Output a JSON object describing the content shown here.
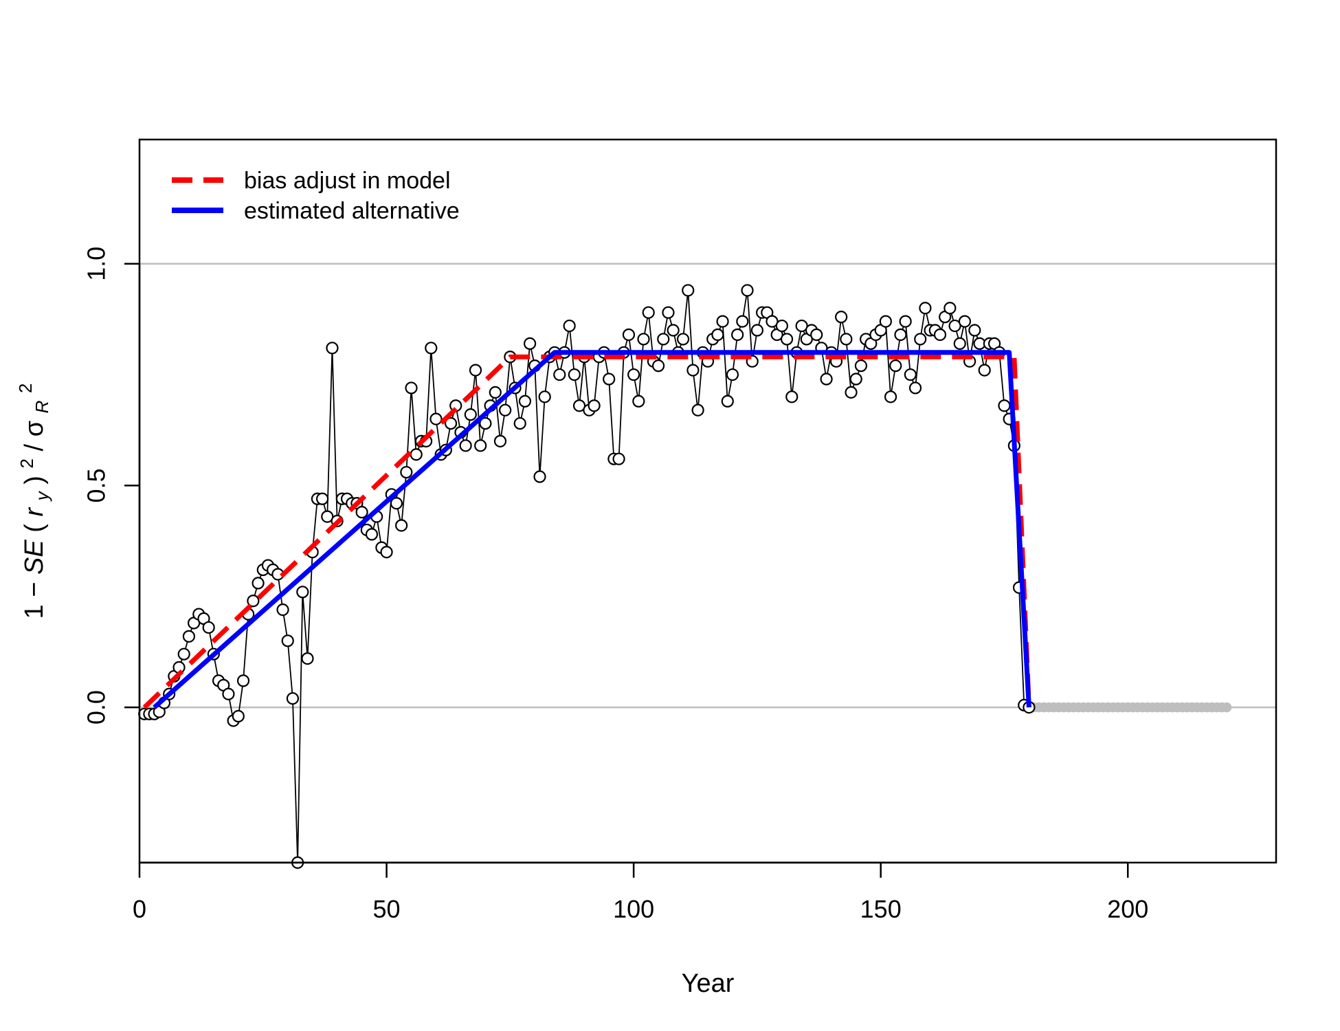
{
  "chart_data": {
    "type": "scatter",
    "xlabel": "Year",
    "ylabel": {
      "one": "1",
      "minus": "−",
      "se": "SE",
      "open": "(",
      "hat": "^",
      "r": "r",
      "sub_y": "y",
      "close": ")",
      "sq": "2",
      "slash": "/",
      "sigma": "σ",
      "sub_R": "R",
      "sq2": "2"
    },
    "xlim": [
      0,
      230
    ],
    "ylim": [
      -0.35,
      1.28
    ],
    "x_ticks": [
      0,
      50,
      100,
      150,
      200
    ],
    "y_ticks": [
      0.0,
      0.5,
      1.0
    ],
    "x_tick_labels": [
      "0",
      "50",
      "100",
      "150",
      "200"
    ],
    "y_tick_labels": [
      "0.0",
      "0.5",
      "1.0"
    ],
    "hlines": [
      0,
      1
    ],
    "legend": {
      "position": "top-left",
      "entries": [
        {
          "label": "bias adjust in model",
          "color": "#ff0000",
          "style": "dashed"
        },
        {
          "label": "estimated alternative",
          "color": "#0000ff",
          "style": "solid"
        }
      ]
    },
    "series": [
      {
        "name": "bias adjust in model",
        "color": "#ff0000",
        "style": "dashed",
        "x": [
          1,
          75,
          177,
          180
        ],
        "y": [
          0,
          0.79,
          0.79,
          0
        ]
      },
      {
        "name": "estimated alternative",
        "color": "#0000ff",
        "style": "solid",
        "x": [
          3,
          84,
          176,
          180
        ],
        "y": [
          0,
          0.8,
          0.8,
          0
        ]
      }
    ],
    "points": {
      "x": [
        1,
        2,
        3,
        4,
        5,
        6,
        7,
        8,
        9,
        10,
        11,
        12,
        13,
        14,
        15,
        16,
        17,
        18,
        19,
        20,
        21,
        22,
        23,
        24,
        25,
        26,
        27,
        28,
        29,
        30,
        31,
        32,
        33,
        34,
        35,
        36,
        37,
        38,
        39,
        40,
        41,
        42,
        43,
        44,
        45,
        46,
        47,
        48,
        49,
        50,
        51,
        52,
        53,
        54,
        55,
        56,
        57,
        58,
        59,
        60,
        61,
        62,
        63,
        64,
        65,
        66,
        67,
        68,
        69,
        70,
        71,
        72,
        73,
        74,
        75,
        76,
        77,
        78,
        79,
        80,
        81,
        82,
        83,
        84,
        85,
        86,
        87,
        88,
        89,
        90,
        91,
        92,
        93,
        94,
        95,
        96,
        97,
        98,
        99,
        100,
        101,
        102,
        103,
        104,
        105,
        106,
        107,
        108,
        109,
        110,
        111,
        112,
        113,
        114,
        115,
        116,
        117,
        118,
        119,
        120,
        121,
        122,
        123,
        124,
        125,
        126,
        127,
        128,
        129,
        130,
        131,
        132,
        133,
        134,
        135,
        136,
        137,
        138,
        139,
        140,
        141,
        142,
        143,
        144,
        145,
        146,
        147,
        148,
        149,
        150,
        151,
        152,
        153,
        154,
        155,
        156,
        157,
        158,
        159,
        160,
        161,
        162,
        163,
        164,
        165,
        166,
        167,
        168,
        169,
        170,
        171,
        172,
        173,
        174,
        175,
        176,
        177,
        178,
        179,
        180
      ],
      "y": [
        -0.015,
        -0.015,
        -0.015,
        -0.01,
        0.01,
        0.03,
        0.07,
        0.09,
        0.12,
        0.16,
        0.19,
        0.21,
        0.2,
        0.18,
        0.12,
        0.06,
        0.05,
        0.03,
        -0.03,
        -0.02,
        0.06,
        0.21,
        0.24,
        0.28,
        0.31,
        0.32,
        0.31,
        0.3,
        0.22,
        0.15,
        0.02,
        -0.35,
        0.26,
        0.11,
        0.35,
        0.47,
        0.47,
        0.43,
        0.81,
        0.42,
        0.47,
        0.47,
        0.46,
        0.46,
        0.44,
        0.4,
        0.39,
        0.43,
        0.36,
        0.35,
        0.48,
        0.46,
        0.41,
        0.53,
        0.72,
        0.57,
        0.6,
        0.6,
        0.81,
        0.65,
        0.57,
        0.58,
        0.64,
        0.68,
        0.62,
        0.59,
        0.66,
        0.76,
        0.59,
        0.64,
        0.68,
        0.71,
        0.6,
        0.67,
        0.79,
        0.72,
        0.64,
        0.69,
        0.82,
        0.77,
        0.52,
        0.7,
        0.79,
        0.8,
        0.75,
        0.8,
        0.86,
        0.75,
        0.68,
        0.79,
        0.67,
        0.68,
        0.79,
        0.8,
        0.74,
        0.56,
        0.56,
        0.8,
        0.84,
        0.75,
        0.69,
        0.83,
        0.89,
        0.78,
        0.77,
        0.83,
        0.89,
        0.85,
        0.8,
        0.83,
        0.94,
        0.76,
        0.67,
        0.8,
        0.78,
        0.83,
        0.84,
        0.87,
        0.69,
        0.75,
        0.84,
        0.87,
        0.94,
        0.78,
        0.85,
        0.89,
        0.89,
        0.87,
        0.84,
        0.86,
        0.83,
        0.7,
        0.8,
        0.86,
        0.83,
        0.85,
        0.84,
        0.81,
        0.74,
        0.8,
        0.78,
        0.88,
        0.83,
        0.71,
        0.74,
        0.77,
        0.83,
        0.82,
        0.84,
        0.85,
        0.87,
        0.7,
        0.77,
        0.84,
        0.87,
        0.75,
        0.72,
        0.83,
        0.9,
        0.85,
        0.85,
        0.84,
        0.88,
        0.9,
        0.86,
        0.82,
        0.87,
        0.78,
        0.85,
        0.82,
        0.76,
        0.82,
        0.82,
        0.8,
        0.68,
        0.65,
        0.59,
        0.27,
        0.005,
        0.0
      ]
    },
    "projection": {
      "x": [
        181,
        182,
        183,
        184,
        185,
        186,
        187,
        188,
        189,
        190,
        191,
        192,
        193,
        194,
        195,
        196,
        197,
        198,
        199,
        200,
        201,
        202,
        203,
        204,
        205,
        206,
        207,
        208,
        209,
        210,
        211,
        212,
        213,
        214,
        215,
        216,
        217,
        218,
        219,
        220
      ],
      "y": [
        0,
        0,
        0,
        0,
        0,
        0,
        0,
        0,
        0,
        0,
        0,
        0,
        0,
        0,
        0,
        0,
        0,
        0,
        0,
        0,
        0,
        0,
        0,
        0,
        0,
        0,
        0,
        0,
        0,
        0,
        0,
        0,
        0,
        0,
        0,
        0,
        0,
        0,
        0,
        0
      ],
      "color": "#bebebe"
    },
    "grid": false
  }
}
